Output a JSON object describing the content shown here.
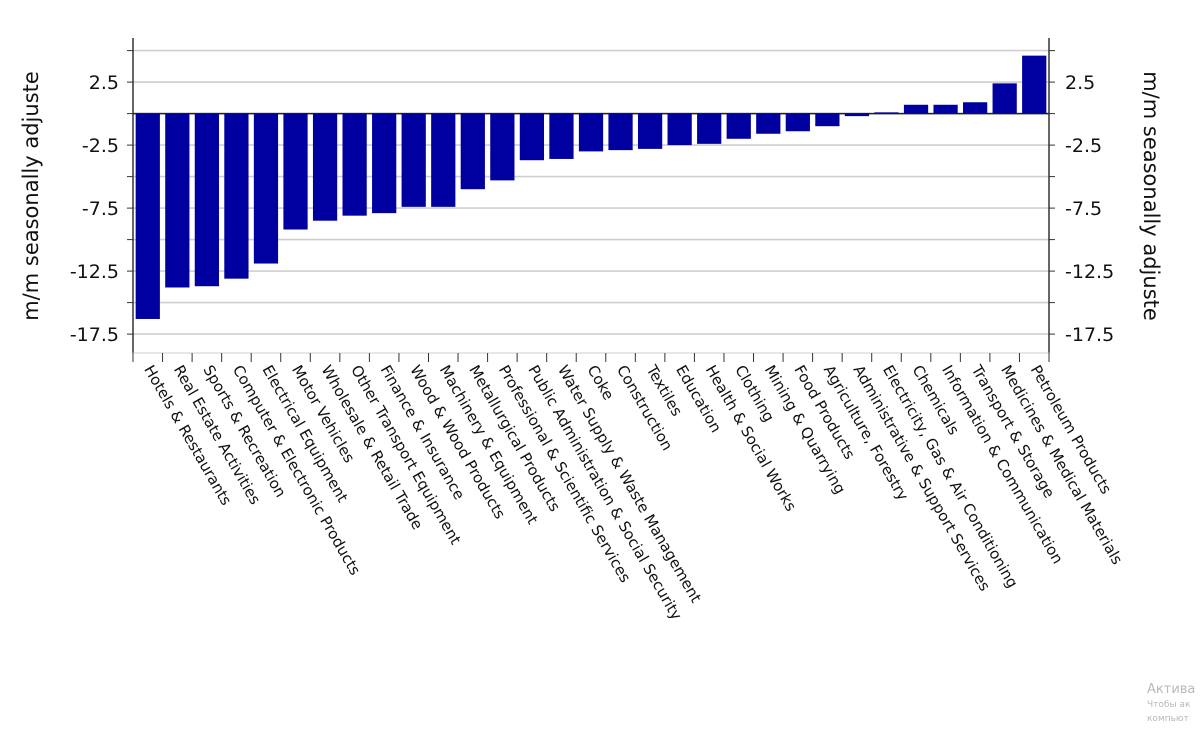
{
  "chart_data": {
    "type": "bar",
    "title": "",
    "xlabel": "",
    "ylabel": "m/m seasonally adjuste",
    "ylabel_right": "m/m seasonally adjuste",
    "ylim": [
      -19,
      6
    ],
    "yticks": [
      2.5,
      -2.5,
      -7.5,
      -12.5,
      -17.5
    ],
    "grid": true,
    "legend": "none",
    "bar_color": "#0000A0",
    "categories": [
      "Hotels & Restaurants",
      "Real Estate Activities",
      "Sports & Recreation",
      "Computer & Electronic Products",
      "Electrical Equipment",
      "Motor Vehicles",
      "Wholesale & Retail Trade",
      "Other Transport Equipment",
      "Finance & Insurance",
      "Wood & Wood Products",
      "Machinery & Equipment",
      "Metallurgical Products",
      "Professional & Scientific Services",
      "Public Administration & Social Security",
      "Water Supply & Waste Management",
      "Coke",
      "Construction",
      "Textiles",
      "Education",
      "Health & Social Works",
      "Clothing",
      "Mining & Quarrying",
      "Food Products",
      "Agriculture, Forestry",
      "Administrative & Support Services",
      "Electricity, Gas & Air Conditioning",
      "Chemicals",
      "Information & Communication",
      "Transport & Storage",
      "Medicines & Medical Materials",
      "Petroleum Products"
    ],
    "values": [
      -16.3,
      -13.8,
      -13.7,
      -13.1,
      -11.9,
      -9.2,
      -8.5,
      -8.1,
      -7.9,
      -7.4,
      -7.4,
      -6.0,
      -5.3,
      -3.7,
      -3.6,
      -3.0,
      -2.9,
      -2.8,
      -2.5,
      -2.4,
      -2.0,
      -1.6,
      -1.4,
      -1.0,
      -0.2,
      0.1,
      0.7,
      0.7,
      0.9,
      2.4,
      4.6
    ]
  },
  "watermark": {
    "line1": "Актива",
    "line2": "Чтобы ак",
    "line3": "компьют"
  }
}
